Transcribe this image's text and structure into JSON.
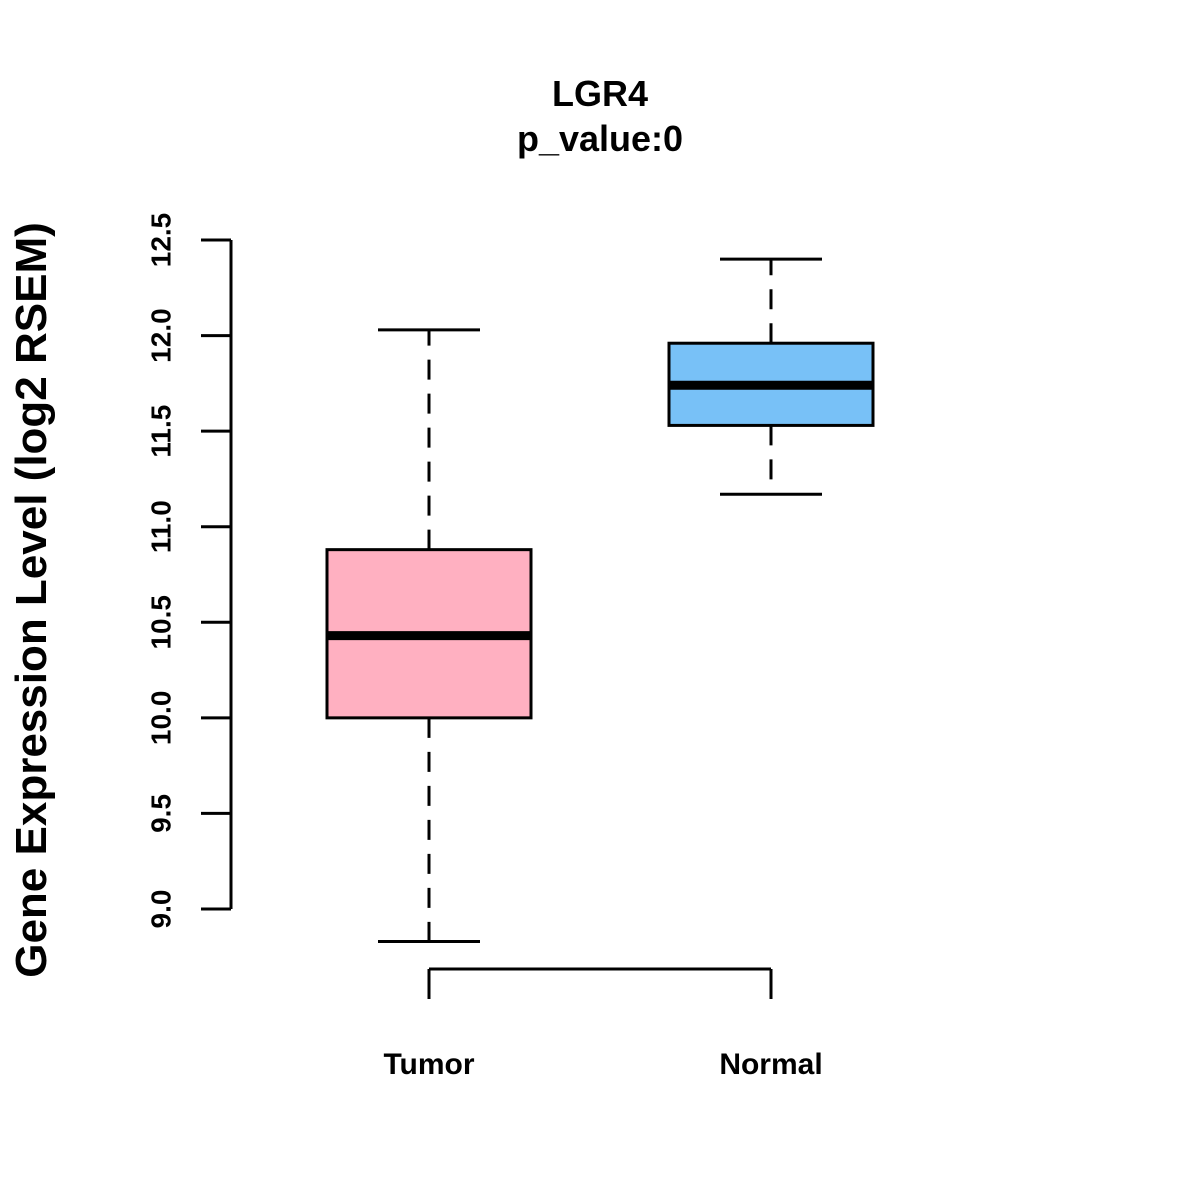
{
  "chart_data": {
    "type": "box",
    "title": "LGR4",
    "subtitle": "p_value:0",
    "ylabel": "Gene Expression Level (log2 RSEM)",
    "xlabel": "",
    "ylim": [
      8.83,
      12.5
    ],
    "yticks": [
      9.0,
      9.5,
      10.0,
      10.5,
      11.0,
      11.5,
      12.0,
      12.5
    ],
    "ytick_labels": [
      "9.0",
      "9.5",
      "10.0",
      "10.5",
      "11.0",
      "11.5",
      "12.0",
      "12.5"
    ],
    "grid": false,
    "categories": [
      "Tumor",
      "Normal"
    ],
    "boxes": [
      {
        "name": "Tumor",
        "whisker_low": 8.83,
        "q1": 10.0,
        "median": 10.43,
        "q3": 10.88,
        "whisker_high": 12.03,
        "color": "#FFB0C1"
      },
      {
        "name": "Normal",
        "whisker_low": 11.17,
        "q1": 11.53,
        "median": 11.74,
        "q3": 11.96,
        "whisker_high": 12.4,
        "color": "#78C1F7"
      }
    ]
  }
}
